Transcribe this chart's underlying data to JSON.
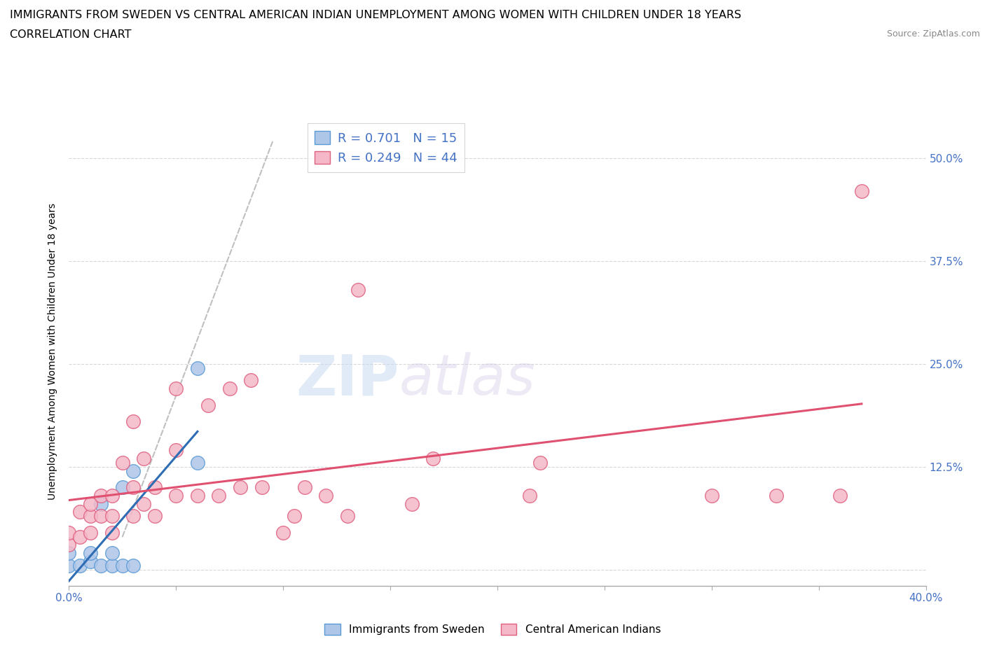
{
  "title_line1": "IMMIGRANTS FROM SWEDEN VS CENTRAL AMERICAN INDIAN UNEMPLOYMENT AMONG WOMEN WITH CHILDREN UNDER 18 YEARS",
  "title_line2": "CORRELATION CHART",
  "source_text": "Source: ZipAtlas.com",
  "ylabel": "Unemployment Among Women with Children Under 18 years",
  "xlim": [
    0.0,
    0.4
  ],
  "ylim": [
    -0.02,
    0.55
  ],
  "y_ticks": [
    0.0,
    0.125,
    0.25,
    0.375,
    0.5
  ],
  "y_tick_labels": [
    "",
    "12.5%",
    "25.0%",
    "37.5%",
    "50.0%"
  ],
  "x_ticks": [
    0.0,
    0.05,
    0.1,
    0.15,
    0.2,
    0.25,
    0.3,
    0.35,
    0.4
  ],
  "watermark_zip": "ZIP",
  "watermark_atlas": "atlas",
  "sweden_color": "#aec6e8",
  "sweden_edge_color": "#5b9bd5",
  "pink_color": "#f4b8c8",
  "pink_edge_color": "#e06080",
  "line_sweden_color": "#2e6db4",
  "line_pink_color": "#e05070",
  "sweden_R": "0.701",
  "sweden_N": "15",
  "pink_R": "0.249",
  "pink_N": "44",
  "label_color": "#4472c4",
  "sweden_scatter_x": [
    0.0,
    0.0,
    0.005,
    0.01,
    0.01,
    0.015,
    0.015,
    0.02,
    0.02,
    0.025,
    0.025,
    0.03,
    0.03,
    0.06,
    0.06
  ],
  "sweden_scatter_y": [
    0.005,
    0.02,
    0.005,
    0.01,
    0.02,
    0.005,
    0.08,
    0.005,
    0.02,
    0.005,
    0.1,
    0.005,
    0.12,
    0.13,
    0.245
  ],
  "pink_scatter_x": [
    0.0,
    0.0,
    0.005,
    0.005,
    0.01,
    0.01,
    0.01,
    0.015,
    0.015,
    0.02,
    0.02,
    0.02,
    0.025,
    0.03,
    0.03,
    0.03,
    0.035,
    0.035,
    0.04,
    0.04,
    0.05,
    0.05,
    0.05,
    0.06,
    0.065,
    0.07,
    0.075,
    0.08,
    0.085,
    0.09,
    0.1,
    0.105,
    0.11,
    0.12,
    0.13,
    0.135,
    0.16,
    0.17,
    0.215,
    0.22,
    0.3,
    0.33,
    0.36,
    0.37
  ],
  "pink_scatter_y": [
    0.03,
    0.045,
    0.04,
    0.07,
    0.045,
    0.065,
    0.08,
    0.065,
    0.09,
    0.045,
    0.065,
    0.09,
    0.13,
    0.065,
    0.1,
    0.18,
    0.08,
    0.135,
    0.065,
    0.1,
    0.09,
    0.145,
    0.22,
    0.09,
    0.2,
    0.09,
    0.22,
    0.1,
    0.23,
    0.1,
    0.045,
    0.065,
    0.1,
    0.09,
    0.065,
    0.34,
    0.08,
    0.135,
    0.09,
    0.13,
    0.09,
    0.09,
    0.09,
    0.46
  ],
  "background_color": "#ffffff",
  "grid_color": "#d8d8d8"
}
